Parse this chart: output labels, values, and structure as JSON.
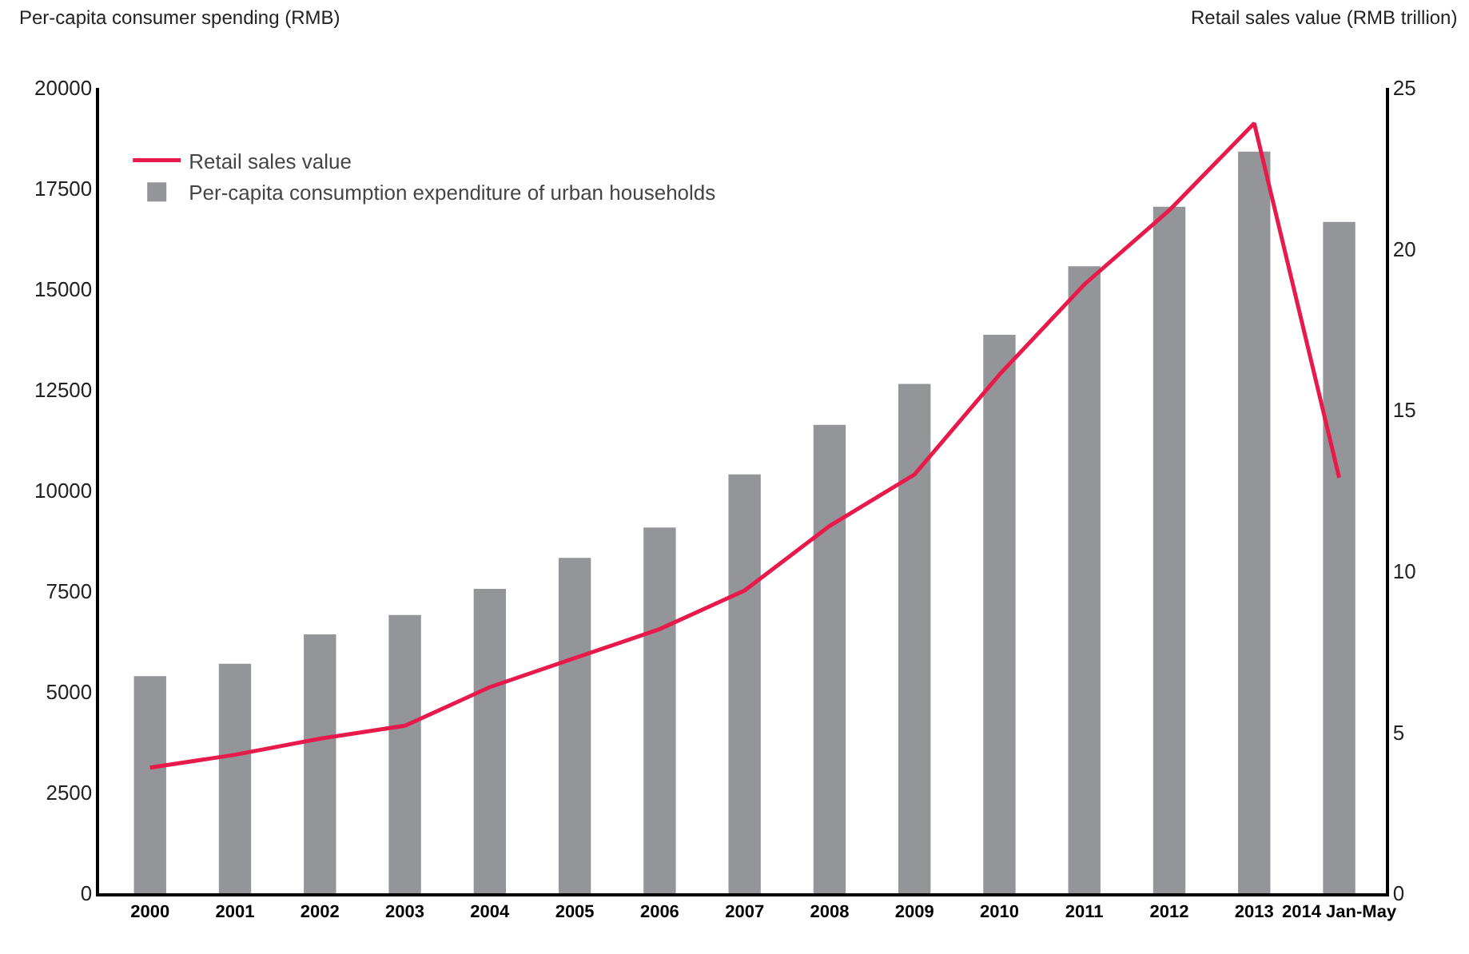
{
  "chart_data": {
    "type": "bar",
    "ylabel": "Per-capita consumer spending (RMB)",
    "y2label": "Retail sales value (RMB trillion)",
    "categories": [
      "2000",
      "2001",
      "2002",
      "2003",
      "2004",
      "2005",
      "2006",
      "2007",
      "2008",
      "2009",
      "2010",
      "2011",
      "2012",
      "2013",
      "2014 Jan-May"
    ],
    "series": [
      {
        "name": "Retail sales value",
        "type": "line",
        "axis": "y2",
        "color": "#e8194b",
        "values": [
          3.9,
          4.3,
          4.8,
          5.2,
          6.4,
          7.3,
          8.2,
          9.4,
          11.4,
          13.0,
          16.1,
          18.9,
          21.2,
          23.9,
          12.9
        ]
      },
      {
        "name": "Per-capita consumption expenditure of urban households",
        "color": "#939598",
        "values": [
          5390,
          5700,
          6430,
          6910,
          7560,
          8330,
          9080,
          10400,
          11630,
          12650,
          13870,
          15570,
          17050,
          18420,
          16670
        ]
      }
    ],
    "ylim": [
      0,
      20000
    ],
    "yticks": [
      0,
      2500,
      5000,
      7500,
      10000,
      12500,
      15000,
      17500,
      20000
    ],
    "y2lim": [
      0,
      25
    ],
    "y2ticks": [
      0,
      5,
      10,
      15,
      20,
      25
    ],
    "grid": false,
    "legend": "top left",
    "marker": "none",
    "line_style": "solid"
  }
}
